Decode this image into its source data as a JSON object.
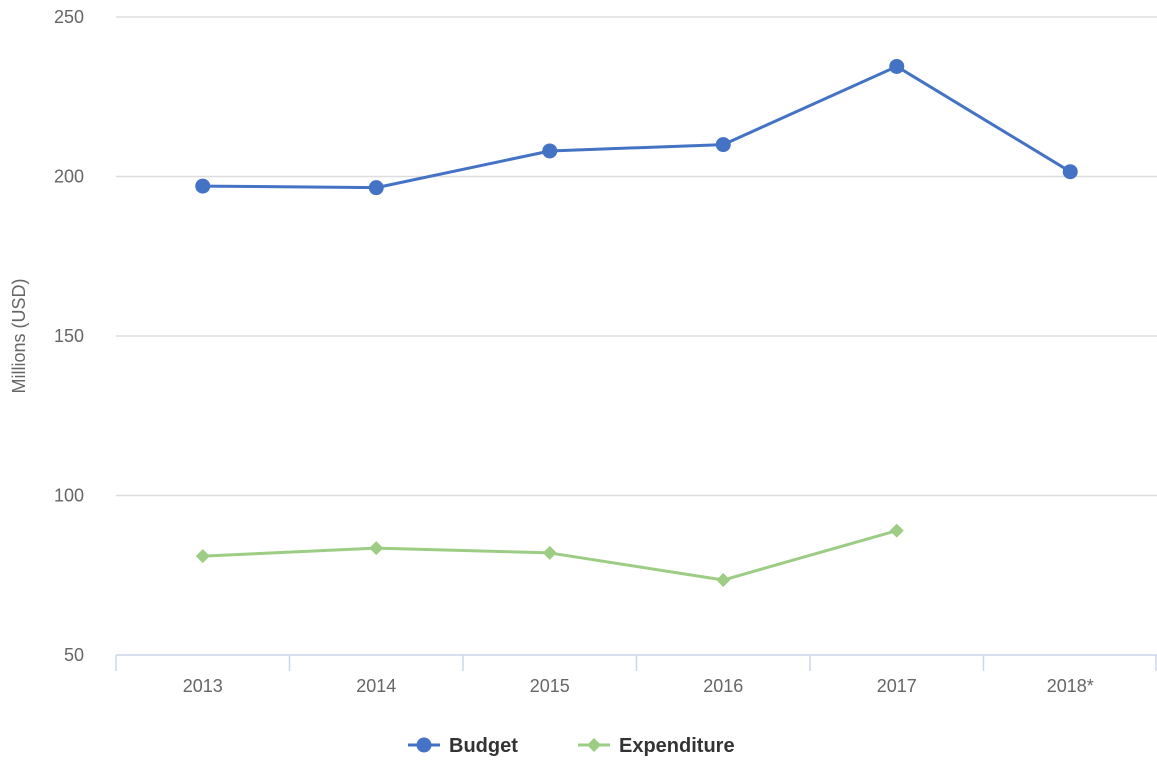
{
  "chart_data": {
    "type": "line",
    "categories": [
      "2013",
      "2014",
      "2015",
      "2016",
      "2017",
      "2018*"
    ],
    "series": [
      {
        "name": "Budget",
        "color": "#4472c4",
        "marker": "circle",
        "values": [
          197,
          196.5,
          208,
          210,
          234.5,
          201.5
        ]
      },
      {
        "name": "Expenditure",
        "color": "#9dcc84",
        "marker": "diamond",
        "values": [
          81,
          83.5,
          82,
          73.5,
          89,
          null
        ]
      }
    ],
    "ylabel": "Millions (USD)",
    "xlabel": "",
    "ylim": [
      50,
      250
    ],
    "yticks": [
      50,
      100,
      150,
      200,
      250
    ],
    "grid": true,
    "legend": "bottom-center"
  }
}
